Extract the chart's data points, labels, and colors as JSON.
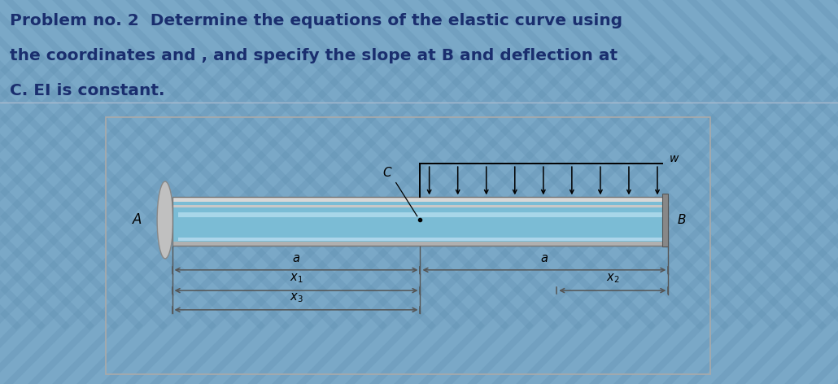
{
  "title_line1": "Problem no. 2  Determine the equations of the elastic curve using",
  "title_line2": "the coordinates and , and specify the slope at B and deflection at",
  "title_line3": "C. EI is constant.",
  "bg_outer": "#7aa8c7",
  "header_bg": "#f0f4f8",
  "diagram_bg": "#ffffff",
  "text_color": "#1a2e6e",
  "beam_blue": "#7bbcd5",
  "beam_highlight": "#b8dff0",
  "beam_gray_top": "#d0d0d0",
  "beam_gray_bot": "#b8b8b8",
  "wall_color": "#b0b0b0",
  "arrow_color": "#111111"
}
